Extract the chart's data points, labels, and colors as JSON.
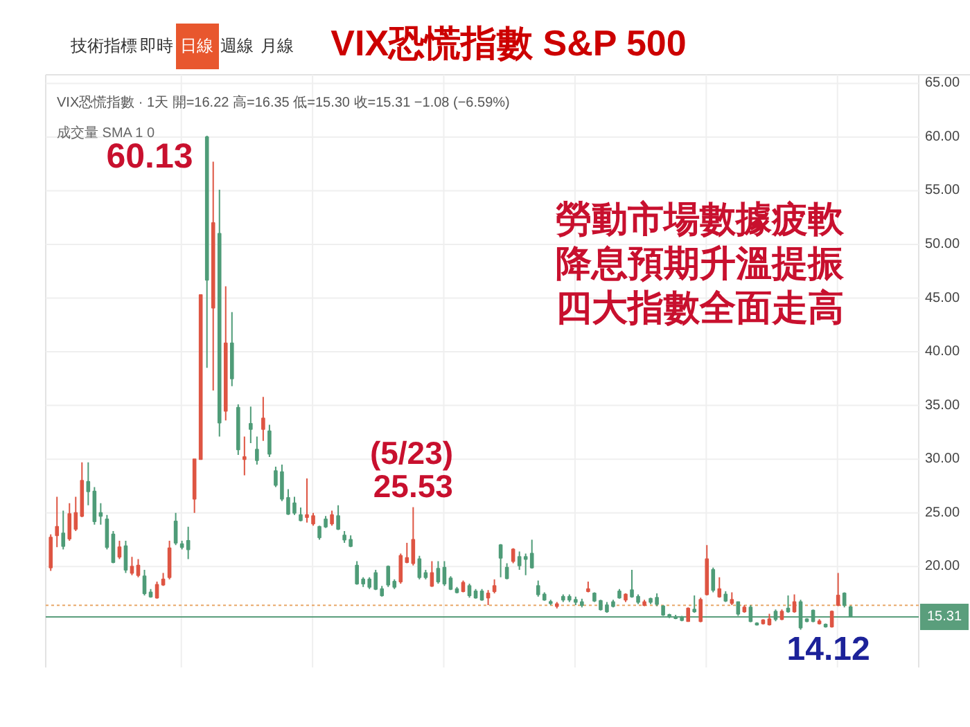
{
  "chart_data": {
    "type": "candlestick",
    "title": "VIX恐慌指數 S&P 500",
    "categories": [
      null,
      null,
      null,
      null,
      null,
      null,
      null,
      null,
      null,
      null,
      null,
      null,
      null,
      null,
      null,
      null,
      null,
      null,
      null,
      null,
      null,
      null,
      null,
      null,
      null,
      null,
      null,
      null,
      null,
      null,
      null,
      null,
      null,
      null,
      null,
      null,
      null,
      null,
      null,
      null,
      null,
      null,
      null,
      null,
      null,
      null,
      null,
      null,
      null,
      null,
      null,
      null,
      null,
      null,
      null,
      null,
      null,
      null,
      null,
      null,
      null,
      null,
      null,
      null,
      null,
      null,
      null,
      null,
      null,
      null,
      null,
      null,
      null,
      null,
      null,
      null,
      null,
      null,
      null,
      null,
      null,
      null,
      null,
      null,
      null,
      null,
      null,
      null,
      null,
      null,
      null,
      null,
      null,
      null,
      null,
      null,
      null,
      null,
      null,
      null,
      null,
      null,
      null,
      null,
      null,
      null,
      null,
      null,
      null,
      null,
      null,
      null,
      null,
      null,
      null,
      null,
      null,
      null,
      null,
      null,
      null,
      null,
      null,
      null,
      null,
      null,
      null,
      null,
      null
    ],
    "ohlc": [
      [
        19.9,
        23.0,
        19.6,
        22.7
      ],
      [
        22.9,
        26.5,
        21.8,
        23.7
      ],
      [
        23.1,
        25.2,
        21.6,
        21.9
      ],
      [
        22.6,
        25.9,
        22.4,
        24.9
      ],
      [
        23.5,
        26.5,
        23.3,
        25.0
      ],
      [
        24.7,
        29.7,
        24.6,
        28.0
      ],
      [
        27.9,
        29.7,
        25.7,
        27.0
      ],
      [
        27.0,
        27.4,
        23.9,
        24.2
      ],
      [
        25.0,
        25.9,
        23.9,
        24.7
      ],
      [
        24.4,
        24.8,
        21.6,
        21.8
      ],
      [
        23.0,
        23.3,
        20.3,
        20.4
      ],
      [
        20.9,
        22.4,
        20.7,
        21.8
      ],
      [
        21.9,
        22.4,
        19.4,
        19.7
      ],
      [
        19.4,
        20.9,
        19.2,
        20.0
      ],
      [
        19.2,
        20.7,
        19.0,
        20.1
      ],
      [
        19.1,
        19.7,
        17.3,
        17.5
      ],
      [
        17.6,
        17.9,
        17.1,
        17.2
      ],
      [
        17.1,
        18.6,
        17.0,
        18.3
      ],
      [
        18.3,
        19.4,
        18.2,
        18.8
      ],
      [
        19.0,
        22.4,
        18.8,
        21.7
      ],
      [
        24.2,
        25.0,
        22.0,
        22.2
      ],
      [
        22.1,
        22.4,
        21.6,
        21.8
      ],
      [
        22.4,
        23.7,
        20.7,
        21.6
      ],
      [
        26.3,
        30.0,
        25.0,
        30.0
      ],
      [
        30.0,
        45.3,
        30.0,
        45.3
      ],
      [
        60.0,
        60.13,
        38.5,
        46.7
      ],
      [
        44.1,
        57.7,
        36.4,
        52.0
      ],
      [
        51.0,
        55.1,
        32.1,
        33.4
      ],
      [
        34.5,
        46.1,
        33.6,
        40.8
      ],
      [
        40.8,
        43.7,
        36.8,
        37.5
      ],
      [
        34.8,
        35.1,
        30.4,
        30.9
      ],
      [
        30.0,
        32.1,
        28.5,
        30.2
      ],
      [
        33.3,
        34.9,
        31.5,
        32.8
      ],
      [
        30.9,
        32.1,
        29.5,
        29.9
      ],
      [
        32.8,
        35.8,
        31.7,
        33.8
      ],
      [
        32.6,
        33.2,
        30.2,
        30.5
      ],
      [
        28.9,
        29.3,
        27.4,
        27.6
      ],
      [
        28.8,
        29.5,
        26.1,
        26.3
      ],
      [
        26.4,
        27.2,
        24.8,
        24.9
      ],
      [
        25.9,
        26.5,
        24.8,
        25.0
      ],
      [
        24.8,
        25.5,
        24.2,
        24.3
      ],
      [
        24.6,
        28.2,
        24.1,
        24.8
      ],
      [
        24.0,
        25.0,
        23.8,
        24.7
      ],
      [
        23.7,
        23.8,
        22.5,
        22.7
      ],
      [
        24.4,
        24.7,
        23.6,
        23.7
      ],
      [
        24.0,
        25.2,
        23.8,
        24.8
      ],
      [
        24.7,
        25.7,
        23.4,
        23.5
      ],
      [
        22.9,
        23.3,
        22.2,
        22.5
      ],
      [
        22.5,
        22.9,
        21.8,
        21.9
      ],
      [
        20.1,
        20.5,
        18.3,
        18.4
      ],
      [
        18.8,
        19.0,
        18.1,
        18.4
      ],
      [
        18.8,
        19.0,
        17.9,
        18.1
      ],
      [
        19.4,
        19.7,
        17.8,
        17.9
      ],
      [
        17.9,
        18.2,
        17.2,
        17.3
      ],
      [
        20.0,
        20.1,
        18.1,
        18.3
      ],
      [
        18.6,
        18.8,
        17.9,
        18.1
      ],
      [
        18.6,
        21.2,
        18.4,
        21.0
      ],
      [
        20.4,
        22.2,
        20.3,
        20.8
      ],
      [
        20.3,
        25.53,
        20.1,
        22.5
      ],
      [
        20.7,
        21.0,
        18.8,
        19.0
      ],
      [
        19.4,
        19.7,
        18.8,
        19.0
      ],
      [
        18.2,
        20.5,
        18.1,
        19.4
      ],
      [
        19.8,
        20.5,
        18.4,
        18.6
      ],
      [
        19.9,
        20.5,
        18.2,
        18.4
      ],
      [
        18.9,
        19.1,
        17.8,
        17.9
      ],
      [
        17.9,
        18.1,
        17.5,
        17.6
      ],
      [
        17.7,
        18.7,
        17.6,
        18.5
      ],
      [
        18.2,
        18.4,
        17.1,
        17.3
      ],
      [
        17.7,
        17.9,
        17.0,
        17.1
      ],
      [
        17.7,
        17.9,
        16.8,
        16.9
      ],
      [
        17.1,
        17.8,
        16.4,
        17.5
      ],
      [
        17.7,
        18.8,
        17.5,
        18.2
      ],
      [
        22.0,
        22.1,
        19.0,
        20.8
      ],
      [
        19.9,
        20.3,
        18.8,
        18.9
      ],
      [
        20.5,
        21.7,
        20.3,
        21.6
      ],
      [
        20.9,
        21.4,
        19.7,
        20.1
      ],
      [
        20.9,
        21.2,
        19.2,
        20.7
      ],
      [
        21.2,
        22.5,
        19.8,
        19.9
      ],
      [
        18.2,
        18.7,
        17.2,
        17.4
      ],
      [
        17.4,
        17.6,
        16.8,
        16.9
      ],
      [
        16.7,
        16.9,
        16.4,
        16.6
      ],
      [
        16.3,
        16.7,
        16.1,
        16.5
      ],
      [
        17.2,
        17.4,
        16.7,
        16.9
      ],
      [
        17.2,
        17.4,
        16.7,
        16.9
      ],
      [
        16.9,
        17.2,
        16.4,
        16.7
      ],
      [
        16.7,
        17.0,
        16.2,
        16.4
      ],
      [
        17.7,
        18.6,
        17.6,
        17.9
      ],
      [
        17.5,
        17.6,
        16.7,
        16.8
      ],
      [
        16.8,
        16.9,
        15.9,
        16.0
      ],
      [
        16.4,
        16.7,
        15.7,
        15.8
      ],
      [
        16.7,
        16.9,
        16.2,
        16.3
      ],
      [
        17.7,
        17.9,
        17.0,
        17.1
      ],
      [
        16.9,
        17.5,
        16.7,
        17.4
      ],
      [
        17.8,
        19.7,
        17.1,
        17.2
      ],
      [
        17.2,
        17.4,
        16.5,
        16.7
      ],
      [
        16.4,
        16.9,
        16.3,
        16.7
      ],
      [
        17.0,
        17.1,
        16.5,
        16.7
      ],
      [
        17.1,
        17.5,
        16.3,
        16.5
      ],
      [
        16.3,
        16.4,
        15.4,
        15.5
      ],
      [
        15.5,
        15.6,
        15.2,
        15.3
      ],
      [
        15.3,
        15.5,
        15.1,
        15.2
      ],
      [
        15.3,
        15.4,
        14.9,
        15.0
      ],
      [
        14.9,
        16.2,
        14.9,
        16.1
      ],
      [
        16.0,
        17.3,
        15.7,
        15.8
      ],
      [
        14.9,
        17.1,
        14.8,
        16.9
      ],
      [
        17.4,
        22.0,
        17.3,
        20.7
      ],
      [
        19.7,
        19.9,
        17.6,
        17.8
      ],
      [
        17.2,
        19.0,
        17.1,
        17.9
      ],
      [
        17.4,
        17.7,
        16.7,
        16.8
      ],
      [
        16.6,
        17.6,
        16.4,
        16.9
      ],
      [
        16.7,
        16.7,
        15.4,
        15.6
      ],
      [
        15.8,
        16.4,
        15.7,
        16.2
      ],
      [
        16.2,
        16.4,
        14.8,
        14.9
      ],
      [
        14.7,
        14.8,
        14.5,
        14.6
      ],
      [
        14.7,
        15.1,
        14.6,
        15.0
      ],
      [
        14.6,
        15.6,
        14.5,
        15.1
      ],
      [
        15.8,
        16.0,
        14.9,
        15.1
      ],
      [
        15.1,
        16.0,
        15.0,
        15.8
      ],
      [
        16.1,
        17.3,
        15.7,
        15.8
      ],
      [
        15.8,
        17.4,
        15.7,
        16.7
      ],
      [
        16.7,
        16.9,
        14.12,
        14.3
      ],
      [
        15.1,
        15.2,
        14.8,
        14.9
      ],
      [
        15.9,
        16.0,
        14.8,
        14.9
      ],
      [
        14.7,
        15.1,
        14.6,
        14.9
      ],
      [
        14.6,
        14.7,
        14.3,
        14.4
      ],
      [
        14.4,
        15.9,
        14.3,
        15.8
      ],
      [
        16.4,
        19.4,
        16.3,
        17.3
      ],
      [
        17.5,
        17.6,
        16.2,
        16.4
      ],
      [
        16.22,
        16.35,
        15.3,
        15.31
      ]
    ],
    "colors": [
      "#de5543",
      "#de5543",
      "#4f9c78",
      "#de5543",
      "#de5543",
      "#de5543",
      "#4f9c78",
      "#4f9c78",
      "#4f9c78",
      "#4f9c78",
      "#4f9c78",
      "#de5543",
      "#4f9c78",
      "#de5543",
      "#de5543",
      "#4f9c78",
      "#4f9c78",
      "#de5543",
      "#de5543",
      "#de5543",
      "#4f9c78",
      "#4f9c78",
      "#4f9c78",
      "#de5543",
      "#de5543",
      "#4f9c78",
      "#de5543",
      "#4f9c78",
      "#de5543",
      "#4f9c78",
      "#4f9c78",
      "#de5543",
      "#4f9c78",
      "#4f9c78",
      "#de5543",
      "#4f9c78",
      "#4f9c78",
      "#4f9c78",
      "#4f9c78",
      "#4f9c78",
      "#4f9c78",
      "#de5543",
      "#de5543",
      "#4f9c78",
      "#4f9c78",
      "#de5543",
      "#4f9c78",
      "#4f9c78",
      "#4f9c78",
      "#4f9c78",
      "#4f9c78",
      "#4f9c78",
      "#4f9c78",
      "#4f9c78",
      "#4f9c78",
      "#4f9c78",
      "#de5543",
      "#de5543",
      "#de5543",
      "#4f9c78",
      "#4f9c78",
      "#de5543",
      "#4f9c78",
      "#4f9c78",
      "#4f9c78",
      "#4f9c78",
      "#de5543",
      "#4f9c78",
      "#4f9c78",
      "#4f9c78",
      "#de5543",
      "#de5543",
      "#4f9c78",
      "#4f9c78",
      "#de5543",
      "#4f9c78",
      "#4f9c78",
      "#4f9c78",
      "#4f9c78",
      "#4f9c78",
      "#4f9c78",
      "#de5543",
      "#4f9c78",
      "#4f9c78",
      "#4f9c78",
      "#4f9c78",
      "#de5543",
      "#4f9c78",
      "#4f9c78",
      "#4f9c78",
      "#4f9c78",
      "#4f9c78",
      "#de5543",
      "#4f9c78",
      "#4f9c78",
      "#de5543",
      "#4f9c78",
      "#4f9c78",
      "#4f9c78",
      "#4f9c78",
      "#4f9c78",
      "#4f9c78",
      "#de5543",
      "#4f9c78",
      "#de5543",
      "#de5543",
      "#4f9c78",
      "#de5543",
      "#4f9c78",
      "#de5543",
      "#4f9c78",
      "#de5543",
      "#4f9c78",
      "#4f9c78",
      "#de5543",
      "#de5543",
      "#4f9c78",
      "#de5543",
      "#4f9c78",
      "#de5543",
      "#4f9c78",
      "#4f9c78",
      "#4f9c78",
      "#de5543",
      "#4f9c78",
      "#de5543",
      "#de5543",
      "#4f9c78",
      "#4f9c78"
    ],
    "ylim": [
      10.6,
      65.8
    ],
    "yticks": [
      {
        "value": 20,
        "label": "20.00"
      },
      {
        "value": 25,
        "label": "25.00"
      },
      {
        "value": 30,
        "label": "30.00"
      },
      {
        "value": 35,
        "label": "35.00"
      },
      {
        "value": 40,
        "label": "40.00"
      },
      {
        "value": 45,
        "label": "45.00"
      },
      {
        "value": 50,
        "label": "50.00"
      },
      {
        "value": 55,
        "label": "55.00"
      },
      {
        "value": 60,
        "label": "60.00"
      },
      {
        "value": 65,
        "label": "65.00"
      }
    ],
    "grid": true,
    "ref_lines": [
      {
        "axis": "y",
        "value": 15.31,
        "label": "15.31",
        "color": "#5a9e7c"
      },
      {
        "axis": "y",
        "value": 16.39,
        "color": "#e9a86a",
        "line_style": "dotted"
      }
    ],
    "annotations": [
      "技術指標",
      "即時",
      "日線",
      "週線",
      "月線",
      "VIX恐慌指數 · 1天 開=16.22 高=16.35 低=15.30 收=15.31 −1.08 (−6.59%)",
      "成交量 SMA 1 0",
      "60.13",
      "(5/23)",
      {
        "text": "25.53",
        "y": 25.53
      },
      "勞動市場數據疲軟",
      "降息預期升溫提振",
      "四大指數全面走高",
      {
        "text": "14.12",
        "y": 14.12
      }
    ]
  }
}
